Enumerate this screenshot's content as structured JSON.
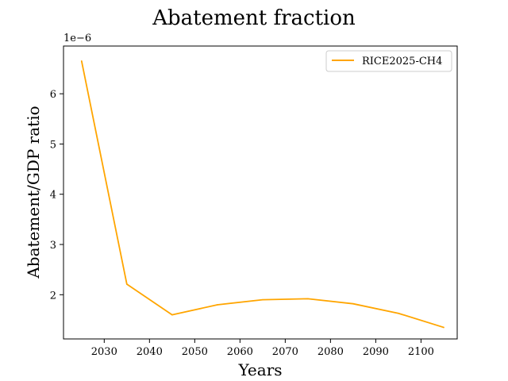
{
  "chart_data": {
    "type": "line",
    "title": "Abatement fraction",
    "xlabel": "Years",
    "ylabel": "Abatement/GDP ratio",
    "y_offset_label": "1e−6",
    "x_ticks": [
      2030,
      2040,
      2050,
      2060,
      2070,
      2080,
      2090,
      2100
    ],
    "y_ticks": [
      2,
      3,
      4,
      5,
      6
    ],
    "xlim": [
      2021,
      2108
    ],
    "ylim": [
      1.12,
      6.95
    ],
    "grid": false,
    "legend_position": "top-right",
    "series": [
      {
        "name": "RICE2025-CH4",
        "color": "#ffa500",
        "x": [
          2025,
          2035,
          2045,
          2055,
          2065,
          2075,
          2085,
          2095,
          2105
        ],
        "y": [
          6.65,
          2.21,
          1.6,
          1.8,
          1.9,
          1.92,
          1.82,
          1.63,
          1.35
        ]
      }
    ]
  }
}
